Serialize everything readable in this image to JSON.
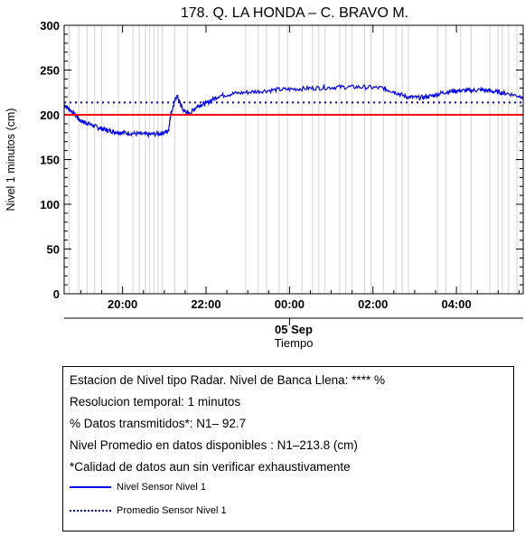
{
  "chart_data": {
    "type": "line",
    "title": "178. Q. LA HONDA – C. BRAVO M.",
    "ylabel": "Nivel 1 minutos (cm)",
    "xlabel": "Tiempo",
    "date_label": "05 Sep",
    "ylim": [
      0,
      300
    ],
    "yticks": [
      "0",
      "50",
      "100",
      "150",
      "200",
      "250",
      "300"
    ],
    "xticks": [
      "20:00",
      "22:00",
      "00:00",
      "02:00",
      "04:00"
    ],
    "xlim_hours": [
      18.6,
      29.6
    ],
    "xtick_hours": [
      20,
      22,
      24,
      26,
      28
    ],
    "grid": "vertical gaps",
    "series": [
      {
        "name": "Nivel Sensor Nivel 1",
        "color": "#0000ff",
        "style": "solid",
        "x_hours": [
          18.6,
          18.8,
          19.0,
          19.2,
          19.4,
          19.6,
          19.8,
          20.0,
          20.3,
          20.6,
          20.9,
          21.1,
          21.15,
          21.3,
          21.45,
          21.6,
          21.8,
          22.0,
          22.3,
          22.7,
          23.2,
          23.7,
          24.2,
          24.7,
          25.2,
          25.7,
          26.2,
          26.5,
          26.8,
          27.1,
          27.4,
          27.7,
          28.0,
          28.3,
          28.6,
          28.9,
          29.2,
          29.6
        ],
        "y": [
          211,
          203,
          193,
          190,
          186,
          183,
          181,
          180,
          179,
          178,
          179,
          182,
          200,
          222,
          205,
          201,
          210,
          213,
          221,
          224,
          226,
          228,
          229,
          230,
          231,
          231,
          230,
          226,
          220,
          219,
          221,
          225,
          227,
          227,
          228,
          226,
          224,
          220
        ]
      },
      {
        "name": "Promedio Sensor Nivel 1",
        "color": "#0000ff",
        "style": "dotted",
        "value": 213.8
      },
      {
        "name": "Nivel de Banca Llena",
        "color": "#ff0000",
        "style": "solid",
        "value": 200
      }
    ],
    "gap_hours": [
      18.72,
      18.95,
      19.15,
      19.33,
      19.5,
      19.9,
      20.25,
      20.4,
      20.55,
      20.65,
      20.75,
      20.85,
      20.95,
      21.25,
      21.55,
      22.95,
      23.25,
      23.45,
      23.75,
      23.95,
      24.3,
      24.55,
      24.7,
      24.85,
      25.2,
      25.35,
      25.5,
      25.8,
      25.95,
      26.25,
      26.55,
      26.7,
      26.85,
      27.55,
      27.75,
      28.1,
      28.35,
      28.8,
      29.0,
      29.1,
      29.25,
      29.45
    ]
  },
  "legend": {
    "line1": "Estacion de Nivel tipo Radar. Nivel de Banca Llena: **** %",
    "line2": "Resolucion temporal: 1 minutos",
    "line3": "% Datos transmitidos*: N1– 92.7",
    "line4": "Nivel Promedio en datos disponibles : N1–213.8 (cm)",
    "line5": "*Calidad de datos aun sin verificar exhaustivamente",
    "key1": "Nivel Sensor Nivel 1",
    "key2": "Promedio Sensor Nivel 1"
  }
}
